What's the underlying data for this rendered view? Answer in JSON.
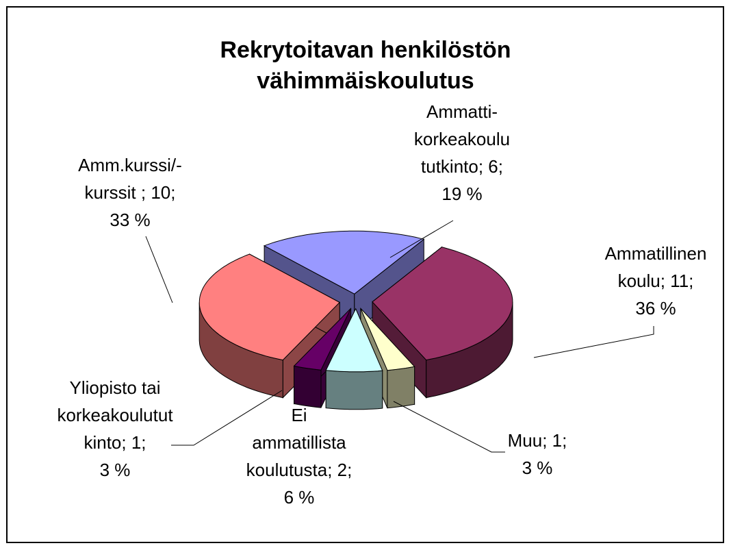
{
  "chart_data": {
    "type": "pie3d",
    "title": [
      "Rekrytoitavan henkilöstön",
      "vähimmäiskoulutus"
    ],
    "values": [
      6,
      11,
      1,
      2,
      1,
      10
    ],
    "labels": [
      [
        "Ammatti-",
        "korkeakoulu",
        "tutkinto; 6;",
        "19 %"
      ],
      [
        "Ammatillinen",
        "koulu; 11;",
        "36 %"
      ],
      [
        "Muu; 1;",
        "3 %"
      ],
      [
        "Ei",
        "ammatillista",
        "koulutusta; 2;",
        "6 %"
      ],
      [
        "Yliopisto tai",
        "korkeakoulutut",
        "kinto; 1;",
        "3 %"
      ],
      [
        "Amm.kurssi/-",
        "kurssit ; 10;",
        "33 %"
      ]
    ],
    "colors": [
      "#9999ff",
      "#993366",
      "#ffffcc",
      "#ccffff",
      "#660066",
      "#ff8080"
    ]
  }
}
